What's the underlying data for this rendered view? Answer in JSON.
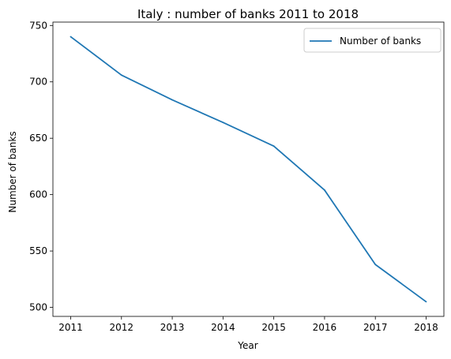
{
  "chart_data": {
    "type": "line",
    "title": "Italy : number of banks 2011 to 2018",
    "xlabel": "Year",
    "ylabel": "Number of banks",
    "x": [
      2011,
      2012,
      2013,
      2014,
      2015,
      2016,
      2017,
      2018
    ],
    "xticks": [
      "2011",
      "2012",
      "2013",
      "2014",
      "2015",
      "2016",
      "2017",
      "2018"
    ],
    "yticks": [
      500,
      550,
      600,
      650,
      700,
      750
    ],
    "ylim": [
      492,
      753
    ],
    "xlim": [
      2010.65,
      2018.35
    ],
    "series": [
      {
        "name": "Number of banks",
        "color": "#1f77b4",
        "values": [
          740,
          706,
          684,
          664,
          643,
          604,
          538,
          505
        ]
      }
    ],
    "legend": "top-right",
    "grid": false
  }
}
